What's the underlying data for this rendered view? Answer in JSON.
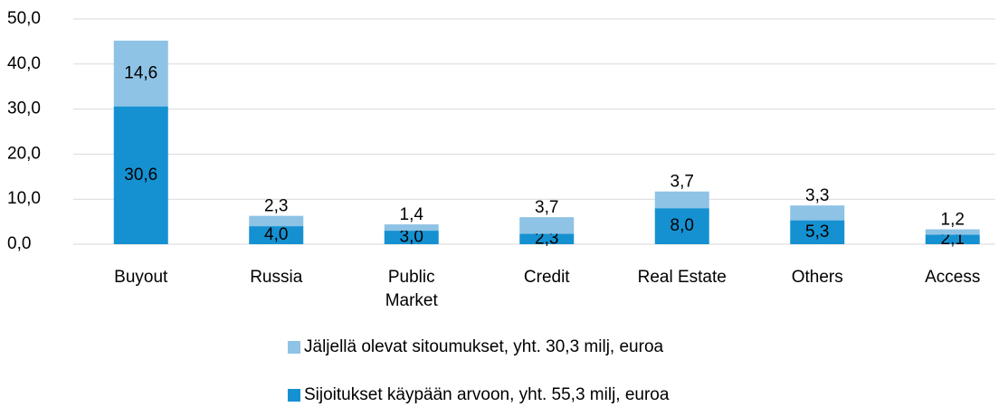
{
  "chart_data": {
    "type": "stacked_bar",
    "categories": [
      "Buyout",
      "Russia",
      "Public Market",
      "Credit",
      "Real Estate",
      "Others",
      "Access"
    ],
    "series": [
      {
        "name": "Sijoitukset käypään arvoon, yht. 55,3 milj, euroa",
        "color": "#1591d1",
        "values": [
          30.6,
          4.0,
          3.0,
          2.3,
          8.0,
          5.3,
          2.1
        ],
        "value_labels": [
          "30,6",
          "4,0",
          "3,0",
          "2,3",
          "8,0",
          "5,3",
          "2,1"
        ]
      },
      {
        "name": "Jäljellä olevat sitoumukset, yht. 30,3 milj, euroa",
        "color": "#8ec3e6",
        "values": [
          14.6,
          2.3,
          1.4,
          3.7,
          3.7,
          3.3,
          1.2
        ],
        "value_labels": [
          "14,6",
          "2,3",
          "1,4",
          "3,7",
          "3,7",
          "3,3",
          "1,2"
        ]
      }
    ],
    "ylim": [
      0,
      50
    ],
    "yticks": [
      {
        "value": 0,
        "label": "0,0"
      },
      {
        "value": 10,
        "label": "10,0"
      },
      {
        "value": 20,
        "label": "20,0"
      },
      {
        "value": 30,
        "label": "30,0"
      },
      {
        "value": 40,
        "label": "40,0"
      },
      {
        "value": 50,
        "label": "50,0"
      }
    ],
    "grid": true,
    "legend": "bottom"
  }
}
